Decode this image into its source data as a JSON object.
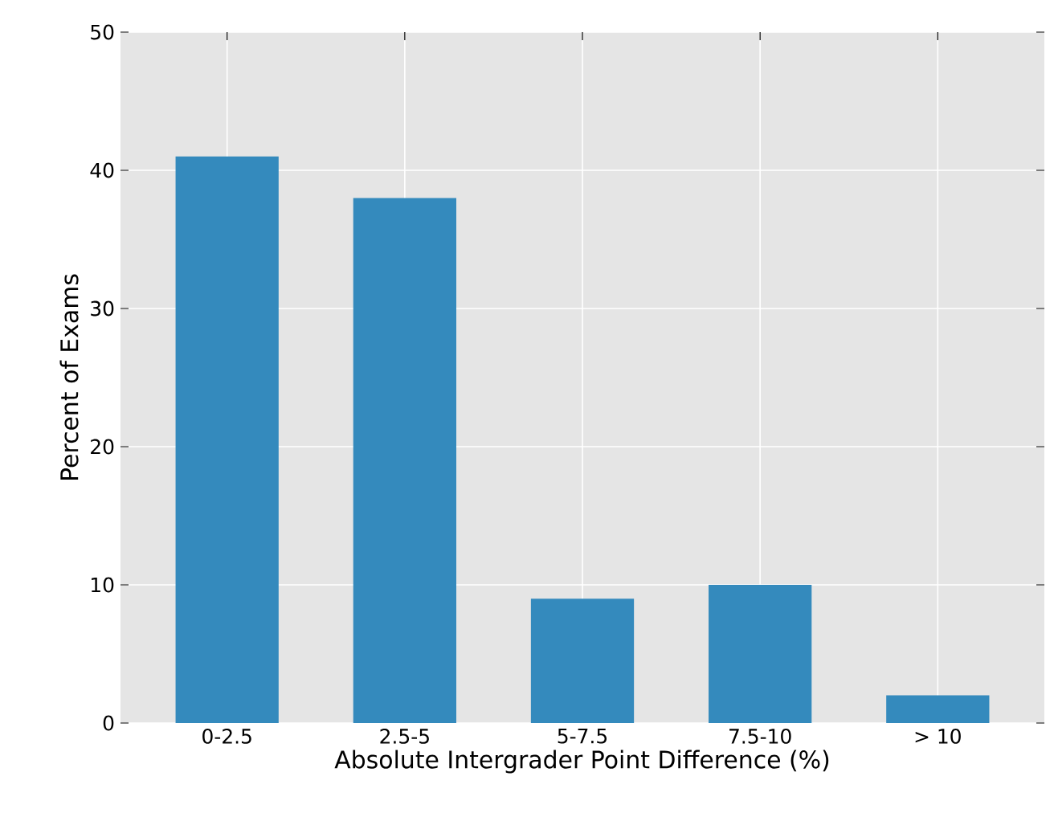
{
  "chart_data": {
    "type": "bar",
    "xlabel": "Absolute Intergrader Point Difference (%)",
    "ylabel": "Percent of Exams",
    "categories": [
      "0-2.5",
      "2.5-5",
      "5-7.5",
      "7.5-10",
      "> 10"
    ],
    "values": [
      41,
      38,
      9,
      10,
      2
    ],
    "color": "#348abd",
    "ylim": [
      0,
      50
    ],
    "yticks": [
      0,
      10,
      20,
      30,
      40,
      50
    ],
    "grid": true
  }
}
